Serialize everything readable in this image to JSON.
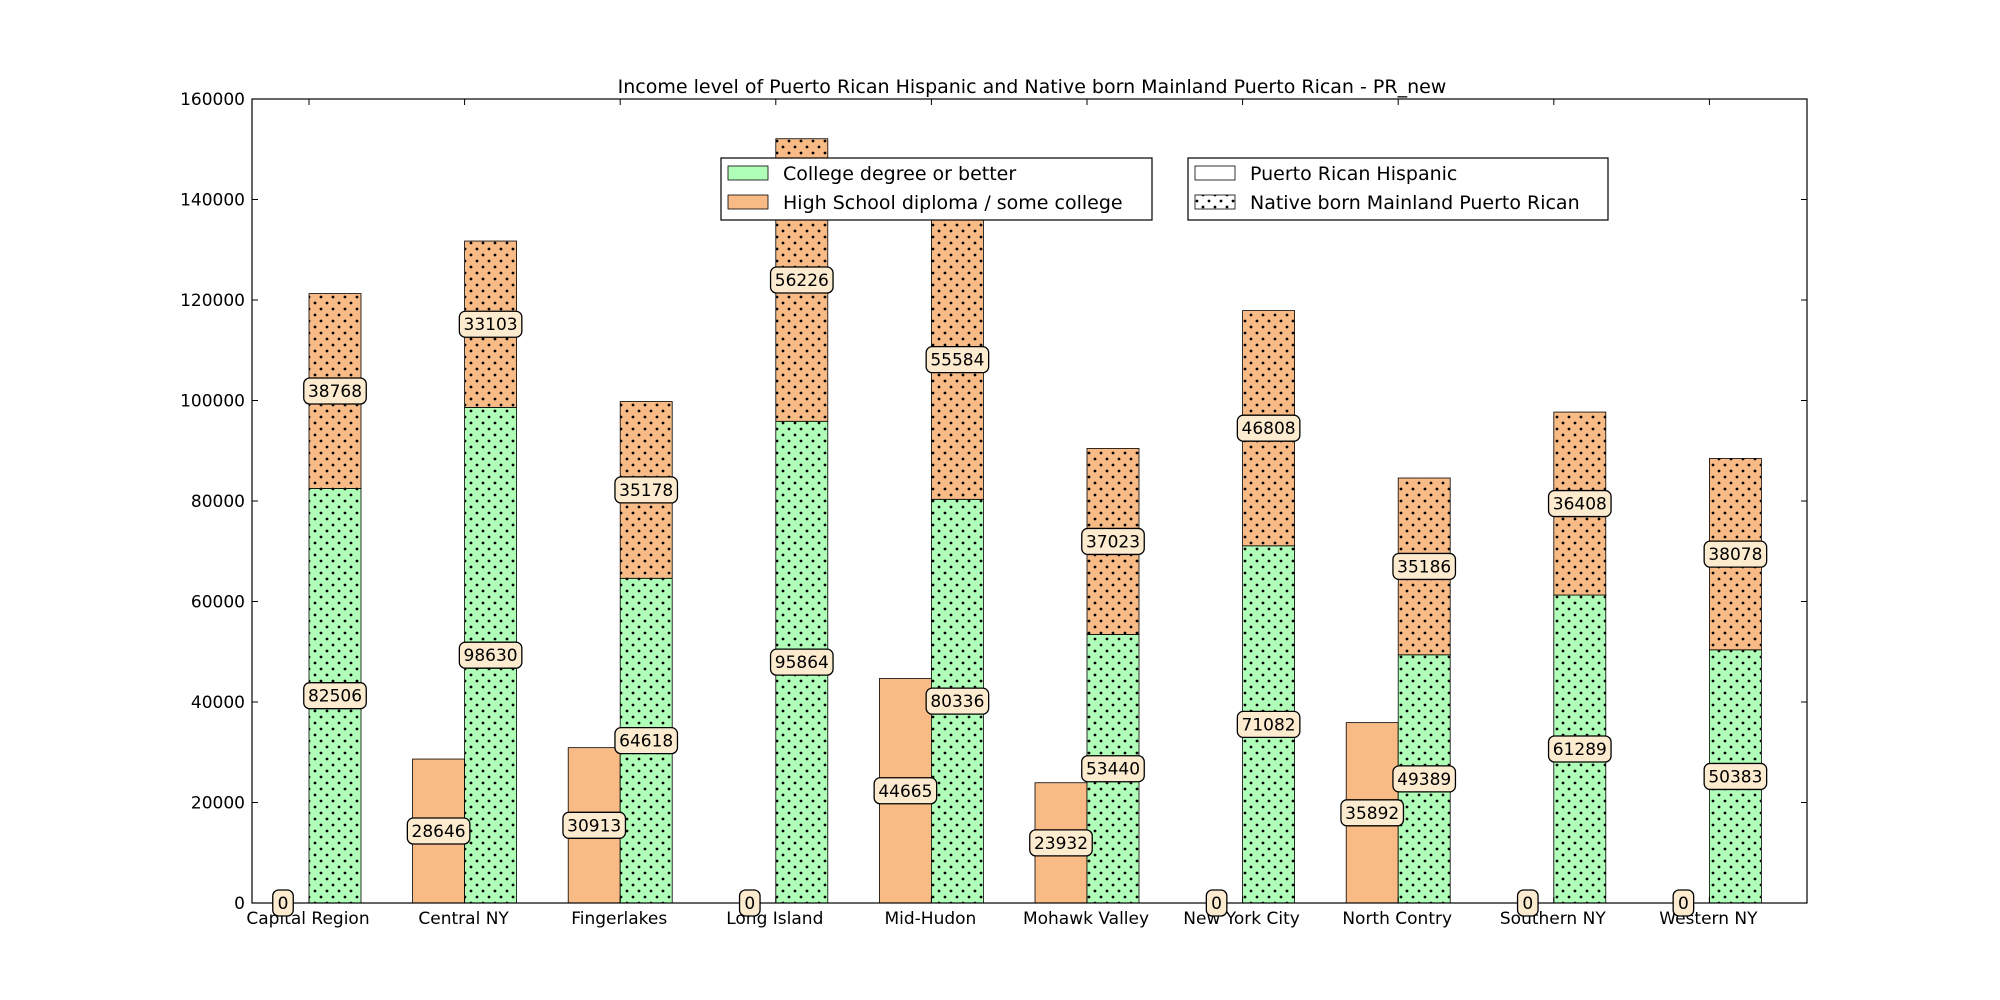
{
  "chart_data": {
    "type": "bar",
    "title": "Income level of Puerto Rican Hispanic and Native born Mainland Puerto Rican - PR_new",
    "xlabel": "",
    "ylabel": "",
    "ylim": [
      0,
      160000
    ],
    "yticks": [
      0,
      20000,
      40000,
      60000,
      80000,
      100000,
      120000,
      140000,
      160000
    ],
    "grid": false,
    "categories": [
      "Capital Region",
      "Central NY",
      "Fingerlakes",
      "Long Island",
      "Mid-Hudon",
      "Mohawk Valley",
      "New York City",
      "North Contry",
      "Southern NY",
      "Western NY"
    ],
    "series": [
      {
        "name": "Puerto Rican Hispanic",
        "education": "High School diploma / some college",
        "values": [
          0,
          28646,
          30913,
          0,
          44665,
          23932,
          0,
          35892,
          0,
          0
        ]
      },
      {
        "name": "Native born Mainland Puerto Rican",
        "education": "College degree or better",
        "values": [
          82506,
          98630,
          64618,
          95864,
          80336,
          53440,
          71082,
          49389,
          61289,
          50383
        ]
      },
      {
        "name": "Native born Mainland Puerto Rican",
        "education": "High School diploma / some college",
        "values": [
          38768,
          33103,
          35178,
          56226,
          55584,
          37023,
          46808,
          35186,
          36408,
          38078
        ]
      }
    ],
    "legends": {
      "education": {
        "placement": "top-center",
        "entries": [
          {
            "label": "College degree or better",
            "color": "#b0ffb8"
          },
          {
            "label": "High School diploma / some college",
            "color": "#f8bb86"
          }
        ]
      },
      "origin": {
        "placement": "top-right",
        "entries": [
          {
            "label": "Puerto Rican Hispanic",
            "pattern": "solid"
          },
          {
            "label": "Native born Mainland Puerto Rican",
            "pattern": "dots"
          }
        ]
      }
    },
    "colors": {
      "college": "#b0ffb8",
      "highschool": "#f8bb86",
      "label_box": "#fdebd0"
    }
  }
}
